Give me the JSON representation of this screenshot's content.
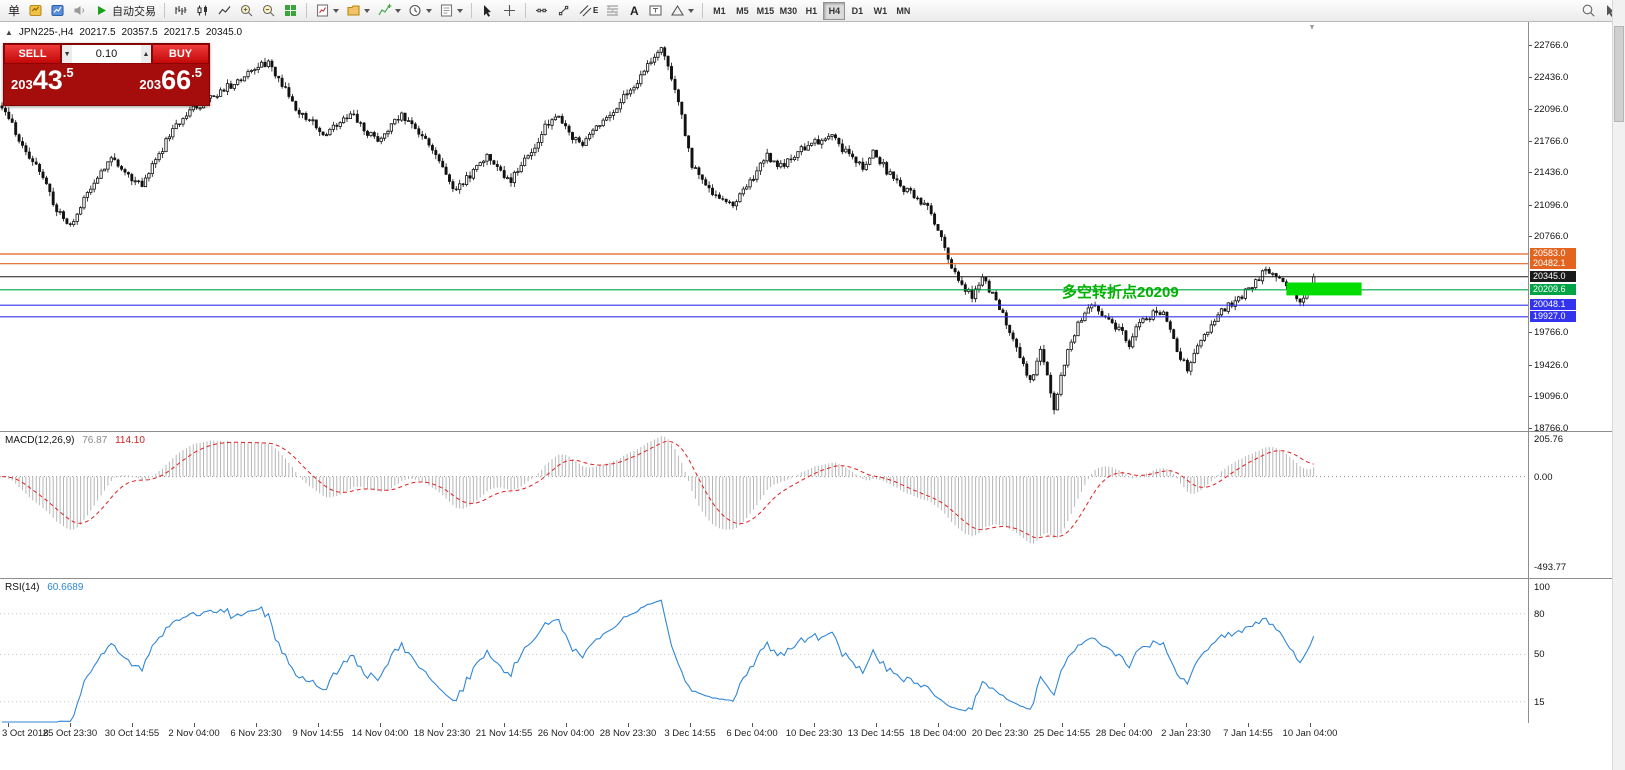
{
  "toolbar": {
    "menu_char": "单",
    "autotrading": "自动交易",
    "text_tool": "A",
    "channel_tool": "E",
    "timeframes": [
      "M1",
      "M5",
      "M15",
      "M30",
      "H1",
      "H4",
      "D1",
      "W1",
      "MN"
    ],
    "active_timeframe": "H4"
  },
  "price_panel": {
    "header": {
      "collapse": "▲",
      "symbol": "JPN225-,H4",
      "o": "20217.5",
      "h": "20357.5",
      "l": "20217.5",
      "c": "20345.0"
    },
    "trade": {
      "sell": "SELL",
      "buy": "BUY",
      "volume": "0.10",
      "sell_price": {
        "small": "203",
        "big": "43",
        "frac": ".5"
      },
      "buy_price": {
        "small": "203",
        "big": "66",
        "frac": ".5"
      }
    },
    "annotation": "多空转折点20209",
    "levels": [
      {
        "value": 20583.0,
        "tag": "20583.0",
        "color": "#e3641f"
      },
      {
        "value": 20482.1,
        "tag": "20482.1",
        "color": "#e3641f"
      },
      {
        "value": 20345.0,
        "tag": "20345.0",
        "color": "#1a1a1a"
      },
      {
        "value": 20209.6,
        "tag": "20209.6",
        "color": "#00a447"
      },
      {
        "value": 20048.1,
        "tag": "20048.1",
        "color": "#3333ee"
      },
      {
        "value": 19927.0,
        "tag": "19927.0",
        "color": "#3333ee"
      }
    ],
    "rectangle": {
      "color": "#00dd00",
      "price_top": 20285,
      "price_bottom": 20150,
      "bar_from": 376,
      "bar_to": 398
    }
  },
  "macd_panel": {
    "label": "MACD(12,26,9)",
    "main_value": "76.87",
    "signal_value": "114.10",
    "axis_values": [
      205.76,
      0.0,
      -493.77
    ],
    "axis_texts": [
      "205.76",
      "0.00",
      "-493.77"
    ]
  },
  "rsi_panel": {
    "label": "RSI(14)",
    "value": "60.6689",
    "axis_values": [
      100,
      80,
      50,
      15
    ],
    "level_lines": [
      80,
      50,
      15
    ]
  },
  "chart_data": {
    "type": "candlestick",
    "symbol": "JPN225-",
    "timeframe": "H4",
    "bars": 385,
    "price_axis_range": [
      18745,
      22985
    ],
    "y_axis_labels": [
      22766,
      22436,
      22096,
      21766,
      21436,
      21096,
      20766,
      19766,
      19426,
      19096,
      18766
    ],
    "x_axis_labels": [
      "3 Oct 2018",
      "25 Oct 23:30",
      "30 Oct 14:55",
      "2 Nov 04:00",
      "6 Nov 23:30",
      "9 Nov 14:55",
      "14 Nov 04:00",
      "18 Nov 23:30",
      "21 Nov 14:55",
      "26 Nov 04:00",
      "28 Nov 23:30",
      "3 Dec 14:55",
      "6 Dec 04:00",
      "10 Dec 23:30",
      "13 Dec 14:55",
      "18 Dec 04:00",
      "20 Dec 23:30",
      "25 Dec 14:55",
      "28 Dec 04:00",
      "2 Jan 23:30",
      "7 Jan 14:55",
      "10 Jan 04:00"
    ],
    "trajectory_anchors": [
      [
        0,
        22120
      ],
      [
        4,
        21850
      ],
      [
        10,
        21500
      ],
      [
        16,
        21050
      ],
      [
        20,
        20850
      ],
      [
        25,
        21250
      ],
      [
        29,
        21450
      ],
      [
        32,
        21620
      ],
      [
        37,
        21400
      ],
      [
        41,
        21300
      ],
      [
        45,
        21550
      ],
      [
        50,
        21900
      ],
      [
        54,
        22050
      ],
      [
        59,
        22150
      ],
      [
        63,
        22250
      ],
      [
        67,
        22350
      ],
      [
        73,
        22480
      ],
      [
        78,
        22600
      ],
      [
        82,
        22350
      ],
      [
        86,
        22100
      ],
      [
        91,
        21950
      ],
      [
        94,
        21800
      ],
      [
        98,
        21950
      ],
      [
        102,
        22050
      ],
      [
        107,
        21850
      ],
      [
        110,
        21750
      ],
      [
        114,
        21950
      ],
      [
        117,
        22050
      ],
      [
        121,
        21900
      ],
      [
        126,
        21650
      ],
      [
        130,
        21400
      ],
      [
        133,
        21250
      ],
      [
        138,
        21450
      ],
      [
        142,
        21600
      ],
      [
        146,
        21450
      ],
      [
        149,
        21350
      ],
      [
        154,
        21600
      ],
      [
        158,
        21850
      ],
      [
        162,
        22050
      ],
      [
        167,
        21800
      ],
      [
        170,
        21700
      ],
      [
        174,
        21900
      ],
      [
        179,
        22100
      ],
      [
        183,
        22250
      ],
      [
        187,
        22450
      ],
      [
        192,
        22680
      ],
      [
        193,
        22750
      ],
      [
        196,
        22400
      ],
      [
        199,
        22000
      ],
      [
        202,
        21500
      ],
      [
        205,
        21350
      ],
      [
        209,
        21200
      ],
      [
        214,
        21100
      ],
      [
        220,
        21400
      ],
      [
        224,
        21600
      ],
      [
        228,
        21500
      ],
      [
        233,
        21650
      ],
      [
        237,
        21750
      ],
      [
        243,
        21800
      ],
      [
        247,
        21650
      ],
      [
        252,
        21500
      ],
      [
        255,
        21650
      ],
      [
        259,
        21450
      ],
      [
        263,
        21300
      ],
      [
        268,
        21150
      ],
      [
        271,
        21050
      ],
      [
        275,
        20800
      ],
      [
        278,
        20450
      ],
      [
        281,
        20250
      ],
      [
        284,
        20150
      ],
      [
        287,
        20320
      ],
      [
        290,
        20150
      ],
      [
        293,
        19950
      ],
      [
        296,
        19700
      ],
      [
        299,
        19400
      ],
      [
        301,
        19250
      ],
      [
        304,
        19550
      ],
      [
        306,
        19300
      ],
      [
        308,
        18950
      ],
      [
        310,
        19300
      ],
      [
        313,
        19700
      ],
      [
        316,
        19900
      ],
      [
        319,
        20050
      ],
      [
        322,
        19900
      ],
      [
        325,
        19850
      ],
      [
        328,
        19750
      ],
      [
        330,
        19650
      ],
      [
        333,
        19850
      ],
      [
        337,
        19950
      ],
      [
        340,
        20000
      ],
      [
        342,
        19800
      ],
      [
        345,
        19500
      ],
      [
        347,
        19400
      ],
      [
        350,
        19600
      ],
      [
        353,
        19800
      ],
      [
        356,
        19950
      ],
      [
        359,
        20050
      ],
      [
        362,
        20100
      ],
      [
        364,
        20200
      ],
      [
        367,
        20300
      ],
      [
        370,
        20430
      ],
      [
        373,
        20350
      ],
      [
        376,
        20250
      ],
      [
        379,
        20130
      ],
      [
        381,
        20100
      ],
      [
        383,
        20250
      ],
      [
        384,
        20345
      ]
    ],
    "indicators": [
      {
        "type": "MACD",
        "params": [
          12,
          26,
          9
        ],
        "shown_values": [
          76.87,
          114.1
        ],
        "axis_labels": [
          205.76,
          0.0,
          -493.77
        ]
      },
      {
        "type": "RSI",
        "params": [
          14
        ],
        "shown_value": 60.6689,
        "levels": [
          80,
          50,
          15
        ]
      }
    ],
    "overlays": {
      "horizontal_lines": [
        20583.0,
        20482.1,
        20345.0,
        20209.6,
        20048.1,
        19927.0
      ],
      "annotation_text": "多空转折点20209",
      "rectangle_price_range": [
        20150,
        20285
      ]
    }
  }
}
